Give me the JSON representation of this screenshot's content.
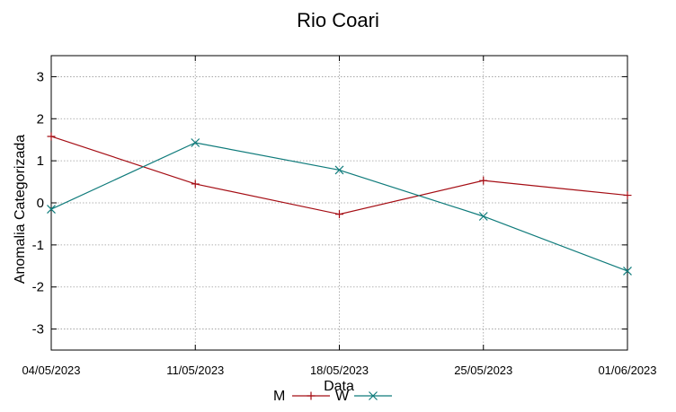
{
  "chart_data": {
    "type": "line",
    "title": "Rio Coari",
    "xlabel": "Data",
    "ylabel": "Anomalia Categorizada",
    "categories": [
      "04/05/2023",
      "11/05/2023",
      "18/05/2023",
      "25/05/2023",
      "01/06/2023"
    ],
    "ylim": [
      -3.5,
      3.5
    ],
    "yticks": [
      -3,
      -2,
      -1,
      0,
      1,
      2,
      3
    ],
    "grid": true,
    "legend_position": "bottom",
    "series": [
      {
        "name": "M",
        "color": "#a50d14",
        "marker": "plus",
        "values": [
          1.58,
          0.45,
          -0.27,
          0.53,
          0.18
        ]
      },
      {
        "name": "W",
        "color": "#0f7b7b",
        "marker": "cross",
        "values": [
          -0.15,
          1.43,
          0.78,
          -0.32,
          -1.62
        ]
      }
    ]
  }
}
